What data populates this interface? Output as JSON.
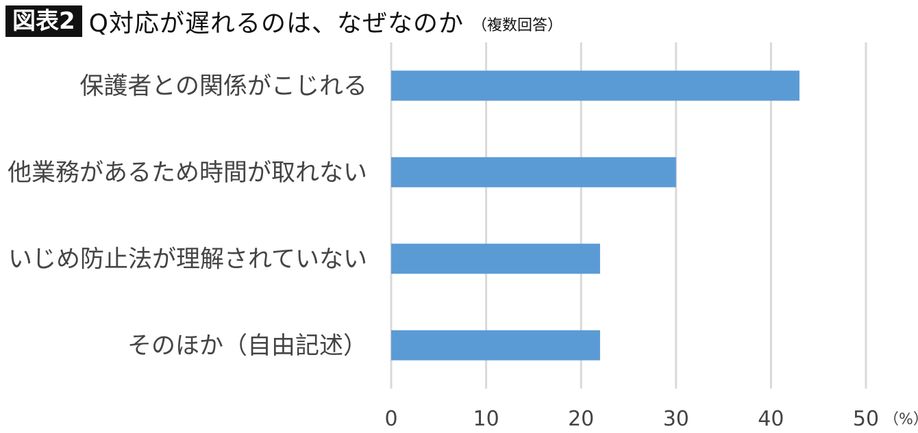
{
  "header": {
    "badge": "図表2",
    "title": "Q対応が遅れるのは、なぜなのか",
    "note": "（複数回答）"
  },
  "chart_data": {
    "type": "bar",
    "orientation": "horizontal",
    "categories": [
      "保護者との関係がこじれる",
      "他業務があるため時間が取れない",
      "いじめ防止法が理解されていない",
      "そのほか（自由記述）"
    ],
    "values": [
      43,
      30,
      22,
      22
    ],
    "xlim": [
      0,
      50
    ],
    "xticks": [
      "0",
      "10",
      "20",
      "30",
      "40",
      "50"
    ],
    "unit": "（%）",
    "grid": true,
    "bar_color": "#5b9bd5",
    "grid_color": "#d9d9d9",
    "label_color": "#444444"
  }
}
